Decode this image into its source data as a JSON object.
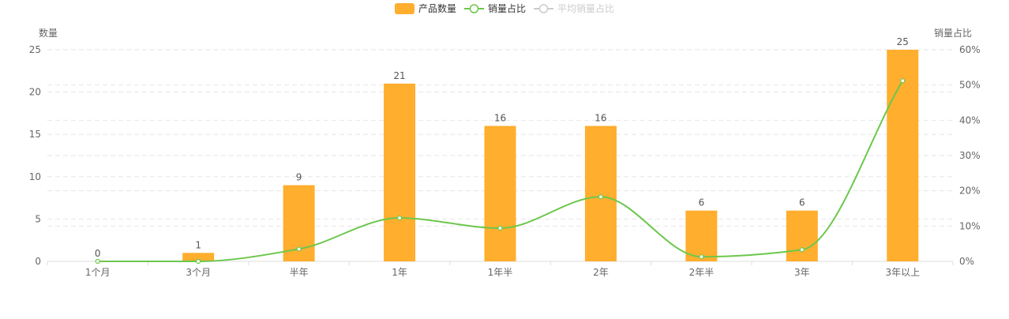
{
  "legend": [
    {
      "name": "产品数量",
      "type": "bar",
      "color": "#FFAE2E",
      "active": true
    },
    {
      "name": "销量占比",
      "type": "line",
      "color": "#6CC74C",
      "active": true
    },
    {
      "name": "平均销量占比",
      "type": "line",
      "color": "#CCCCCC",
      "active": false
    }
  ],
  "chart_data": {
    "type": "bar",
    "categories": [
      "1个月",
      "3个月",
      "半年",
      "1年",
      "1年半",
      "2年",
      "2年半",
      "3年",
      "3年以上"
    ],
    "series": [
      {
        "name": "产品数量",
        "type": "bar",
        "axis": "left",
        "values": [
          0,
          1,
          9,
          21,
          16,
          16,
          6,
          6,
          25
        ],
        "color": "#FFAE2E",
        "data_labels": true
      },
      {
        "name": "销量占比",
        "type": "line",
        "axis": "right",
        "smooth": true,
        "values": [
          0,
          0,
          3.5,
          12.3,
          9.4,
          18.3,
          1.3,
          3.3,
          51.2
        ],
        "unit": "%",
        "color": "#6CC74C"
      },
      {
        "name": "平均销量占比",
        "type": "line",
        "hidden": true,
        "color": "#CCCCCC"
      }
    ],
    "y_left": {
      "label": "数量",
      "ylim": [
        0,
        25
      ],
      "ticks": [
        0,
        5,
        10,
        15,
        20,
        25
      ]
    },
    "y_right": {
      "label": "销量占比",
      "ylim": [
        0,
        60
      ],
      "ticks": [
        0,
        10,
        20,
        30,
        40,
        50,
        60
      ],
      "unit": "%"
    },
    "grid": true,
    "legend_position": "top-center"
  }
}
